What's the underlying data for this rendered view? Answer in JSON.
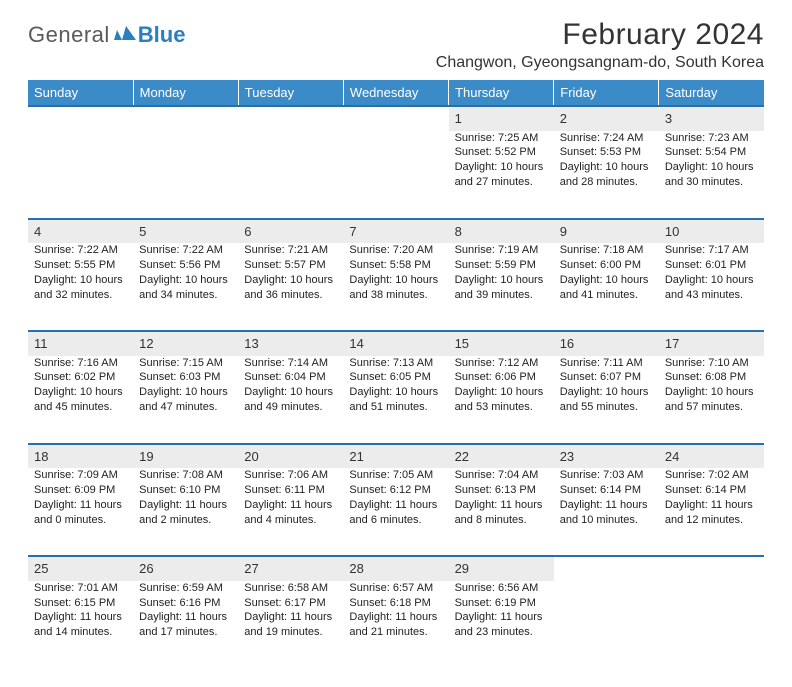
{
  "brand": {
    "text1": "General",
    "text2": "Blue",
    "logo_color": "#2a7fbf"
  },
  "title": "February 2024",
  "location": "Changwon, Gyeongsangnam-do, South Korea",
  "colors": {
    "header_bg": "#3b8bc9",
    "rule": "#2a6ea8",
    "daynum_bg": "#ececec"
  },
  "weekdays": [
    "Sunday",
    "Monday",
    "Tuesday",
    "Wednesday",
    "Thursday",
    "Friday",
    "Saturday"
  ],
  "weeks": [
    [
      null,
      null,
      null,
      null,
      {
        "n": "1",
        "sunrise": "Sunrise: 7:25 AM",
        "sunset": "Sunset: 5:52 PM",
        "d1": "Daylight: 10 hours",
        "d2": "and 27 minutes."
      },
      {
        "n": "2",
        "sunrise": "Sunrise: 7:24 AM",
        "sunset": "Sunset: 5:53 PM",
        "d1": "Daylight: 10 hours",
        "d2": "and 28 minutes."
      },
      {
        "n": "3",
        "sunrise": "Sunrise: 7:23 AM",
        "sunset": "Sunset: 5:54 PM",
        "d1": "Daylight: 10 hours",
        "d2": "and 30 minutes."
      }
    ],
    [
      {
        "n": "4",
        "sunrise": "Sunrise: 7:22 AM",
        "sunset": "Sunset: 5:55 PM",
        "d1": "Daylight: 10 hours",
        "d2": "and 32 minutes."
      },
      {
        "n": "5",
        "sunrise": "Sunrise: 7:22 AM",
        "sunset": "Sunset: 5:56 PM",
        "d1": "Daylight: 10 hours",
        "d2": "and 34 minutes."
      },
      {
        "n": "6",
        "sunrise": "Sunrise: 7:21 AM",
        "sunset": "Sunset: 5:57 PM",
        "d1": "Daylight: 10 hours",
        "d2": "and 36 minutes."
      },
      {
        "n": "7",
        "sunrise": "Sunrise: 7:20 AM",
        "sunset": "Sunset: 5:58 PM",
        "d1": "Daylight: 10 hours",
        "d2": "and 38 minutes."
      },
      {
        "n": "8",
        "sunrise": "Sunrise: 7:19 AM",
        "sunset": "Sunset: 5:59 PM",
        "d1": "Daylight: 10 hours",
        "d2": "and 39 minutes."
      },
      {
        "n": "9",
        "sunrise": "Sunrise: 7:18 AM",
        "sunset": "Sunset: 6:00 PM",
        "d1": "Daylight: 10 hours",
        "d2": "and 41 minutes."
      },
      {
        "n": "10",
        "sunrise": "Sunrise: 7:17 AM",
        "sunset": "Sunset: 6:01 PM",
        "d1": "Daylight: 10 hours",
        "d2": "and 43 minutes."
      }
    ],
    [
      {
        "n": "11",
        "sunrise": "Sunrise: 7:16 AM",
        "sunset": "Sunset: 6:02 PM",
        "d1": "Daylight: 10 hours",
        "d2": "and 45 minutes."
      },
      {
        "n": "12",
        "sunrise": "Sunrise: 7:15 AM",
        "sunset": "Sunset: 6:03 PM",
        "d1": "Daylight: 10 hours",
        "d2": "and 47 minutes."
      },
      {
        "n": "13",
        "sunrise": "Sunrise: 7:14 AM",
        "sunset": "Sunset: 6:04 PM",
        "d1": "Daylight: 10 hours",
        "d2": "and 49 minutes."
      },
      {
        "n": "14",
        "sunrise": "Sunrise: 7:13 AM",
        "sunset": "Sunset: 6:05 PM",
        "d1": "Daylight: 10 hours",
        "d2": "and 51 minutes."
      },
      {
        "n": "15",
        "sunrise": "Sunrise: 7:12 AM",
        "sunset": "Sunset: 6:06 PM",
        "d1": "Daylight: 10 hours",
        "d2": "and 53 minutes."
      },
      {
        "n": "16",
        "sunrise": "Sunrise: 7:11 AM",
        "sunset": "Sunset: 6:07 PM",
        "d1": "Daylight: 10 hours",
        "d2": "and 55 minutes."
      },
      {
        "n": "17",
        "sunrise": "Sunrise: 7:10 AM",
        "sunset": "Sunset: 6:08 PM",
        "d1": "Daylight: 10 hours",
        "d2": "and 57 minutes."
      }
    ],
    [
      {
        "n": "18",
        "sunrise": "Sunrise: 7:09 AM",
        "sunset": "Sunset: 6:09 PM",
        "d1": "Daylight: 11 hours",
        "d2": "and 0 minutes."
      },
      {
        "n": "19",
        "sunrise": "Sunrise: 7:08 AM",
        "sunset": "Sunset: 6:10 PM",
        "d1": "Daylight: 11 hours",
        "d2": "and 2 minutes."
      },
      {
        "n": "20",
        "sunrise": "Sunrise: 7:06 AM",
        "sunset": "Sunset: 6:11 PM",
        "d1": "Daylight: 11 hours",
        "d2": "and 4 minutes."
      },
      {
        "n": "21",
        "sunrise": "Sunrise: 7:05 AM",
        "sunset": "Sunset: 6:12 PM",
        "d1": "Daylight: 11 hours",
        "d2": "and 6 minutes."
      },
      {
        "n": "22",
        "sunrise": "Sunrise: 7:04 AM",
        "sunset": "Sunset: 6:13 PM",
        "d1": "Daylight: 11 hours",
        "d2": "and 8 minutes."
      },
      {
        "n": "23",
        "sunrise": "Sunrise: 7:03 AM",
        "sunset": "Sunset: 6:14 PM",
        "d1": "Daylight: 11 hours",
        "d2": "and 10 minutes."
      },
      {
        "n": "24",
        "sunrise": "Sunrise: 7:02 AM",
        "sunset": "Sunset: 6:14 PM",
        "d1": "Daylight: 11 hours",
        "d2": "and 12 minutes."
      }
    ],
    [
      {
        "n": "25",
        "sunrise": "Sunrise: 7:01 AM",
        "sunset": "Sunset: 6:15 PM",
        "d1": "Daylight: 11 hours",
        "d2": "and 14 minutes."
      },
      {
        "n": "26",
        "sunrise": "Sunrise: 6:59 AM",
        "sunset": "Sunset: 6:16 PM",
        "d1": "Daylight: 11 hours",
        "d2": "and 17 minutes."
      },
      {
        "n": "27",
        "sunrise": "Sunrise: 6:58 AM",
        "sunset": "Sunset: 6:17 PM",
        "d1": "Daylight: 11 hours",
        "d2": "and 19 minutes."
      },
      {
        "n": "28",
        "sunrise": "Sunrise: 6:57 AM",
        "sunset": "Sunset: 6:18 PM",
        "d1": "Daylight: 11 hours",
        "d2": "and 21 minutes."
      },
      {
        "n": "29",
        "sunrise": "Sunrise: 6:56 AM",
        "sunset": "Sunset: 6:19 PM",
        "d1": "Daylight: 11 hours",
        "d2": "and 23 minutes."
      },
      null,
      null
    ]
  ]
}
